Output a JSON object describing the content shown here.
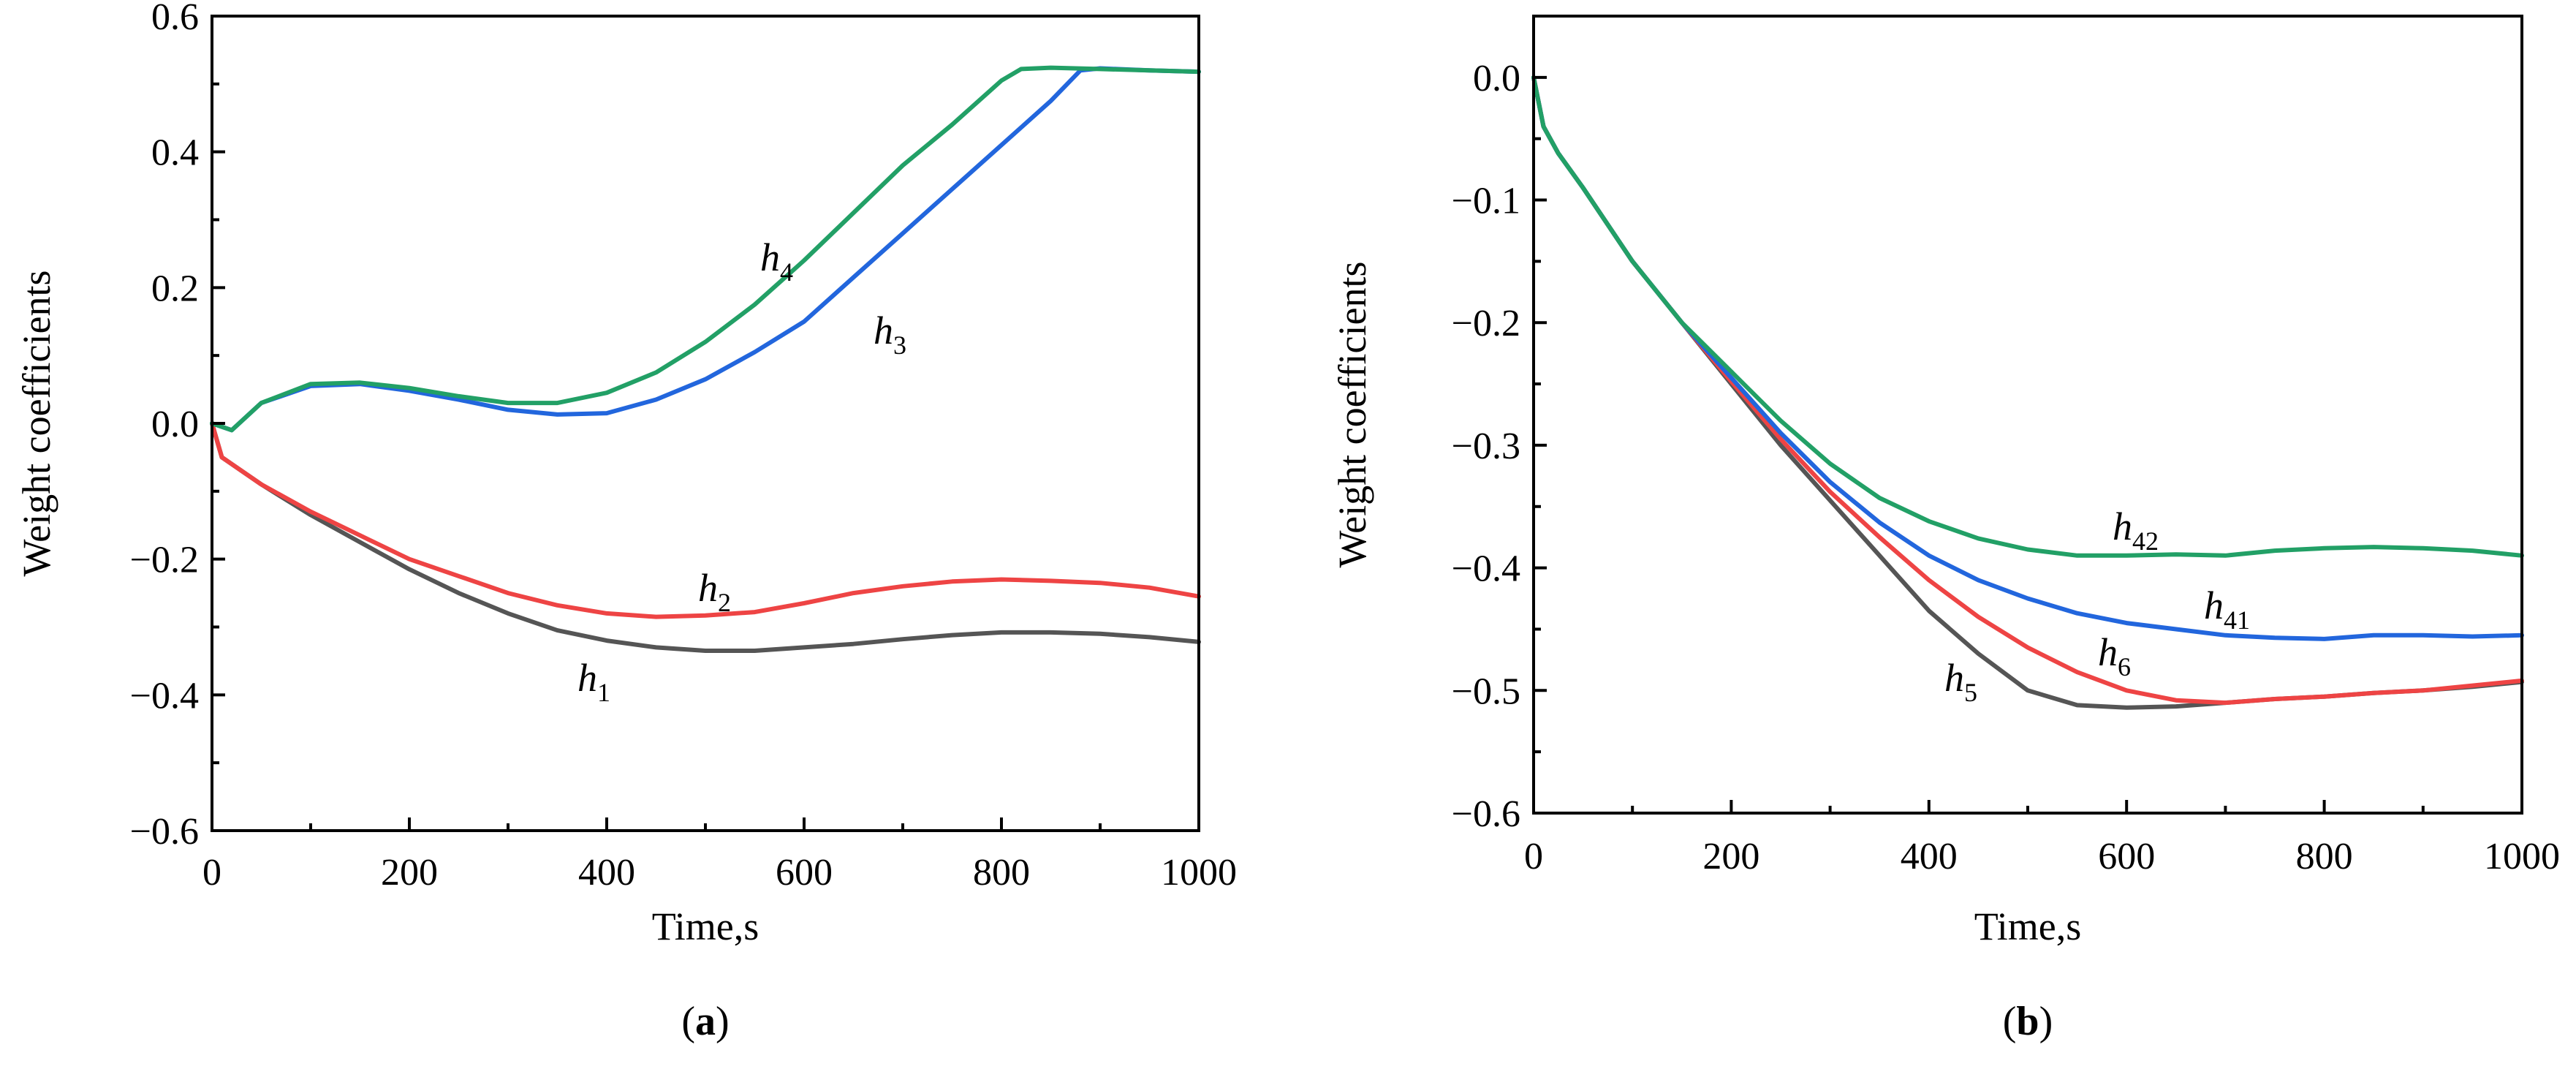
{
  "chart_data": [
    {
      "type": "line",
      "panel": "a",
      "caption_letter": "a",
      "title": "",
      "xlabel": "Time,s",
      "ylabel": "Weight coefficients",
      "xlim": [
        0,
        1000
      ],
      "ylim": [
        -0.6,
        0.6
      ],
      "xticks": [
        "0",
        "200",
        "400",
        "600",
        "800",
        "1000"
      ],
      "yticks": [
        "−0.6",
        "−0.4",
        "−0.2",
        "0.0",
        "0.2",
        "0.4",
        "0.6"
      ],
      "series": [
        {
          "name": "h1",
          "letter": "h",
          "sub": "1",
          "color": "#555555",
          "x": [
            0,
            10,
            50,
            100,
            150,
            200,
            250,
            300,
            350,
            400,
            450,
            500,
            550,
            600,
            650,
            700,
            750,
            800,
            850,
            900,
            950,
            1000
          ],
          "y": [
            0,
            -0.05,
            -0.09,
            -0.135,
            -0.175,
            -0.215,
            -0.25,
            -0.28,
            -0.305,
            -0.32,
            -0.33,
            -0.335,
            -0.335,
            -0.33,
            -0.325,
            -0.318,
            -0.312,
            -0.308,
            -0.308,
            -0.31,
            -0.315,
            -0.322
          ]
        },
        {
          "name": "h2",
          "letter": "h",
          "sub": "2",
          "color": "#ee4444",
          "x": [
            0,
            10,
            50,
            100,
            150,
            200,
            250,
            300,
            350,
            400,
            450,
            500,
            550,
            600,
            650,
            700,
            750,
            800,
            850,
            900,
            950,
            1000
          ],
          "y": [
            0,
            -0.05,
            -0.09,
            -0.13,
            -0.165,
            -0.2,
            -0.225,
            -0.25,
            -0.268,
            -0.28,
            -0.285,
            -0.283,
            -0.278,
            -0.265,
            -0.25,
            -0.24,
            -0.233,
            -0.23,
            -0.232,
            -0.235,
            -0.242,
            -0.255
          ]
        },
        {
          "name": "h3",
          "letter": "h",
          "sub": "3",
          "color": "#2266dd",
          "x": [
            0,
            20,
            50,
            100,
            150,
            200,
            250,
            300,
            350,
            400,
            450,
            500,
            550,
            600,
            650,
            700,
            750,
            800,
            850,
            880,
            900,
            950,
            1000
          ],
          "y": [
            0,
            -0.01,
            0.03,
            0.055,
            0.058,
            0.048,
            0.035,
            0.02,
            0.013,
            0.015,
            0.035,
            0.065,
            0.105,
            0.15,
            0.215,
            0.28,
            0.345,
            0.41,
            0.475,
            0.52,
            0.523,
            0.52,
            0.518
          ]
        },
        {
          "name": "h4",
          "letter": "h",
          "sub": "4",
          "color": "#22a066",
          "x": [
            0,
            20,
            50,
            100,
            150,
            200,
            250,
            300,
            350,
            400,
            450,
            500,
            550,
            600,
            650,
            700,
            750,
            800,
            820,
            850,
            900,
            950,
            1000
          ],
          "y": [
            0,
            -0.01,
            0.03,
            0.058,
            0.06,
            0.052,
            0.04,
            0.03,
            0.03,
            0.045,
            0.075,
            0.12,
            0.175,
            0.24,
            0.31,
            0.38,
            0.44,
            0.505,
            0.522,
            0.524,
            0.522,
            0.52,
            0.518
          ]
        }
      ],
      "annotations": [
        {
          "series": "h1",
          "letter": "h",
          "sub": "1"
        },
        {
          "series": "h2",
          "letter": "h",
          "sub": "2"
        },
        {
          "series": "h3",
          "letter": "h",
          "sub": "3"
        },
        {
          "series": "h4",
          "letter": "h",
          "sub": "4"
        }
      ]
    },
    {
      "type": "line",
      "panel": "b",
      "caption_letter": "b",
      "title": "",
      "xlabel": "Time,s",
      "ylabel": "Weight coefficients",
      "xlim": [
        0,
        1000
      ],
      "ylim": [
        -0.6,
        0.05
      ],
      "xticks": [
        "0",
        "200",
        "400",
        "600",
        "800",
        "1000"
      ],
      "yticks": [
        "−0.6",
        "−0.5",
        "−0.4",
        "−0.3",
        "−0.2",
        "−0.1",
        "0.0"
      ],
      "series": [
        {
          "name": "h5",
          "letter": "h",
          "sub": "5",
          "color": "#555555",
          "x": [
            0,
            10,
            25,
            50,
            100,
            150,
            200,
            250,
            300,
            350,
            400,
            450,
            500,
            550,
            600,
            650,
            700,
            750,
            800,
            850,
            900,
            950,
            1000
          ],
          "y": [
            0,
            -0.04,
            -0.062,
            -0.09,
            -0.15,
            -0.2,
            -0.25,
            -0.3,
            -0.345,
            -0.39,
            -0.435,
            -0.47,
            -0.5,
            -0.512,
            -0.514,
            -0.513,
            -0.51,
            -0.507,
            -0.505,
            -0.502,
            -0.5,
            -0.497,
            -0.493
          ]
        },
        {
          "name": "h6",
          "letter": "h",
          "sub": "6",
          "color": "#ee4444",
          "x": [
            0,
            10,
            25,
            50,
            100,
            150,
            200,
            250,
            300,
            350,
            400,
            450,
            500,
            550,
            600,
            650,
            700,
            750,
            800,
            850,
            900,
            950,
            1000
          ],
          "y": [
            0,
            -0.04,
            -0.062,
            -0.09,
            -0.15,
            -0.2,
            -0.248,
            -0.295,
            -0.338,
            -0.375,
            -0.41,
            -0.44,
            -0.465,
            -0.485,
            -0.5,
            -0.508,
            -0.51,
            -0.507,
            -0.505,
            -0.502,
            -0.5,
            -0.496,
            -0.492
          ]
        },
        {
          "name": "h41",
          "letter": "h",
          "sub": "41",
          "color": "#2266dd",
          "x": [
            0,
            10,
            25,
            50,
            100,
            150,
            200,
            250,
            300,
            350,
            400,
            450,
            500,
            550,
            600,
            650,
            700,
            750,
            800,
            850,
            900,
            950,
            1000
          ],
          "y": [
            0,
            -0.04,
            -0.062,
            -0.09,
            -0.15,
            -0.2,
            -0.245,
            -0.29,
            -0.33,
            -0.363,
            -0.39,
            -0.41,
            -0.425,
            -0.437,
            -0.445,
            -0.45,
            -0.455,
            -0.457,
            -0.458,
            -0.455,
            -0.455,
            -0.456,
            -0.455
          ]
        },
        {
          "name": "h42",
          "letter": "h",
          "sub": "42",
          "color": "#22a066",
          "x": [
            0,
            10,
            25,
            50,
            100,
            150,
            200,
            250,
            300,
            350,
            400,
            450,
            500,
            550,
            600,
            650,
            700,
            750,
            800,
            850,
            900,
            950,
            1000
          ],
          "y": [
            0,
            -0.04,
            -0.062,
            -0.09,
            -0.15,
            -0.2,
            -0.24,
            -0.28,
            -0.315,
            -0.343,
            -0.362,
            -0.376,
            -0.385,
            -0.39,
            -0.39,
            -0.389,
            -0.39,
            -0.386,
            -0.384,
            -0.383,
            -0.384,
            -0.386,
            -0.39
          ]
        }
      ],
      "annotations": [
        {
          "series": "h42",
          "letter": "h",
          "sub": "42"
        },
        {
          "series": "h41",
          "letter": "h",
          "sub": "41"
        },
        {
          "series": "h6",
          "letter": "h",
          "sub": "6"
        },
        {
          "series": "h5",
          "letter": "h",
          "sub": "5"
        }
      ]
    }
  ]
}
